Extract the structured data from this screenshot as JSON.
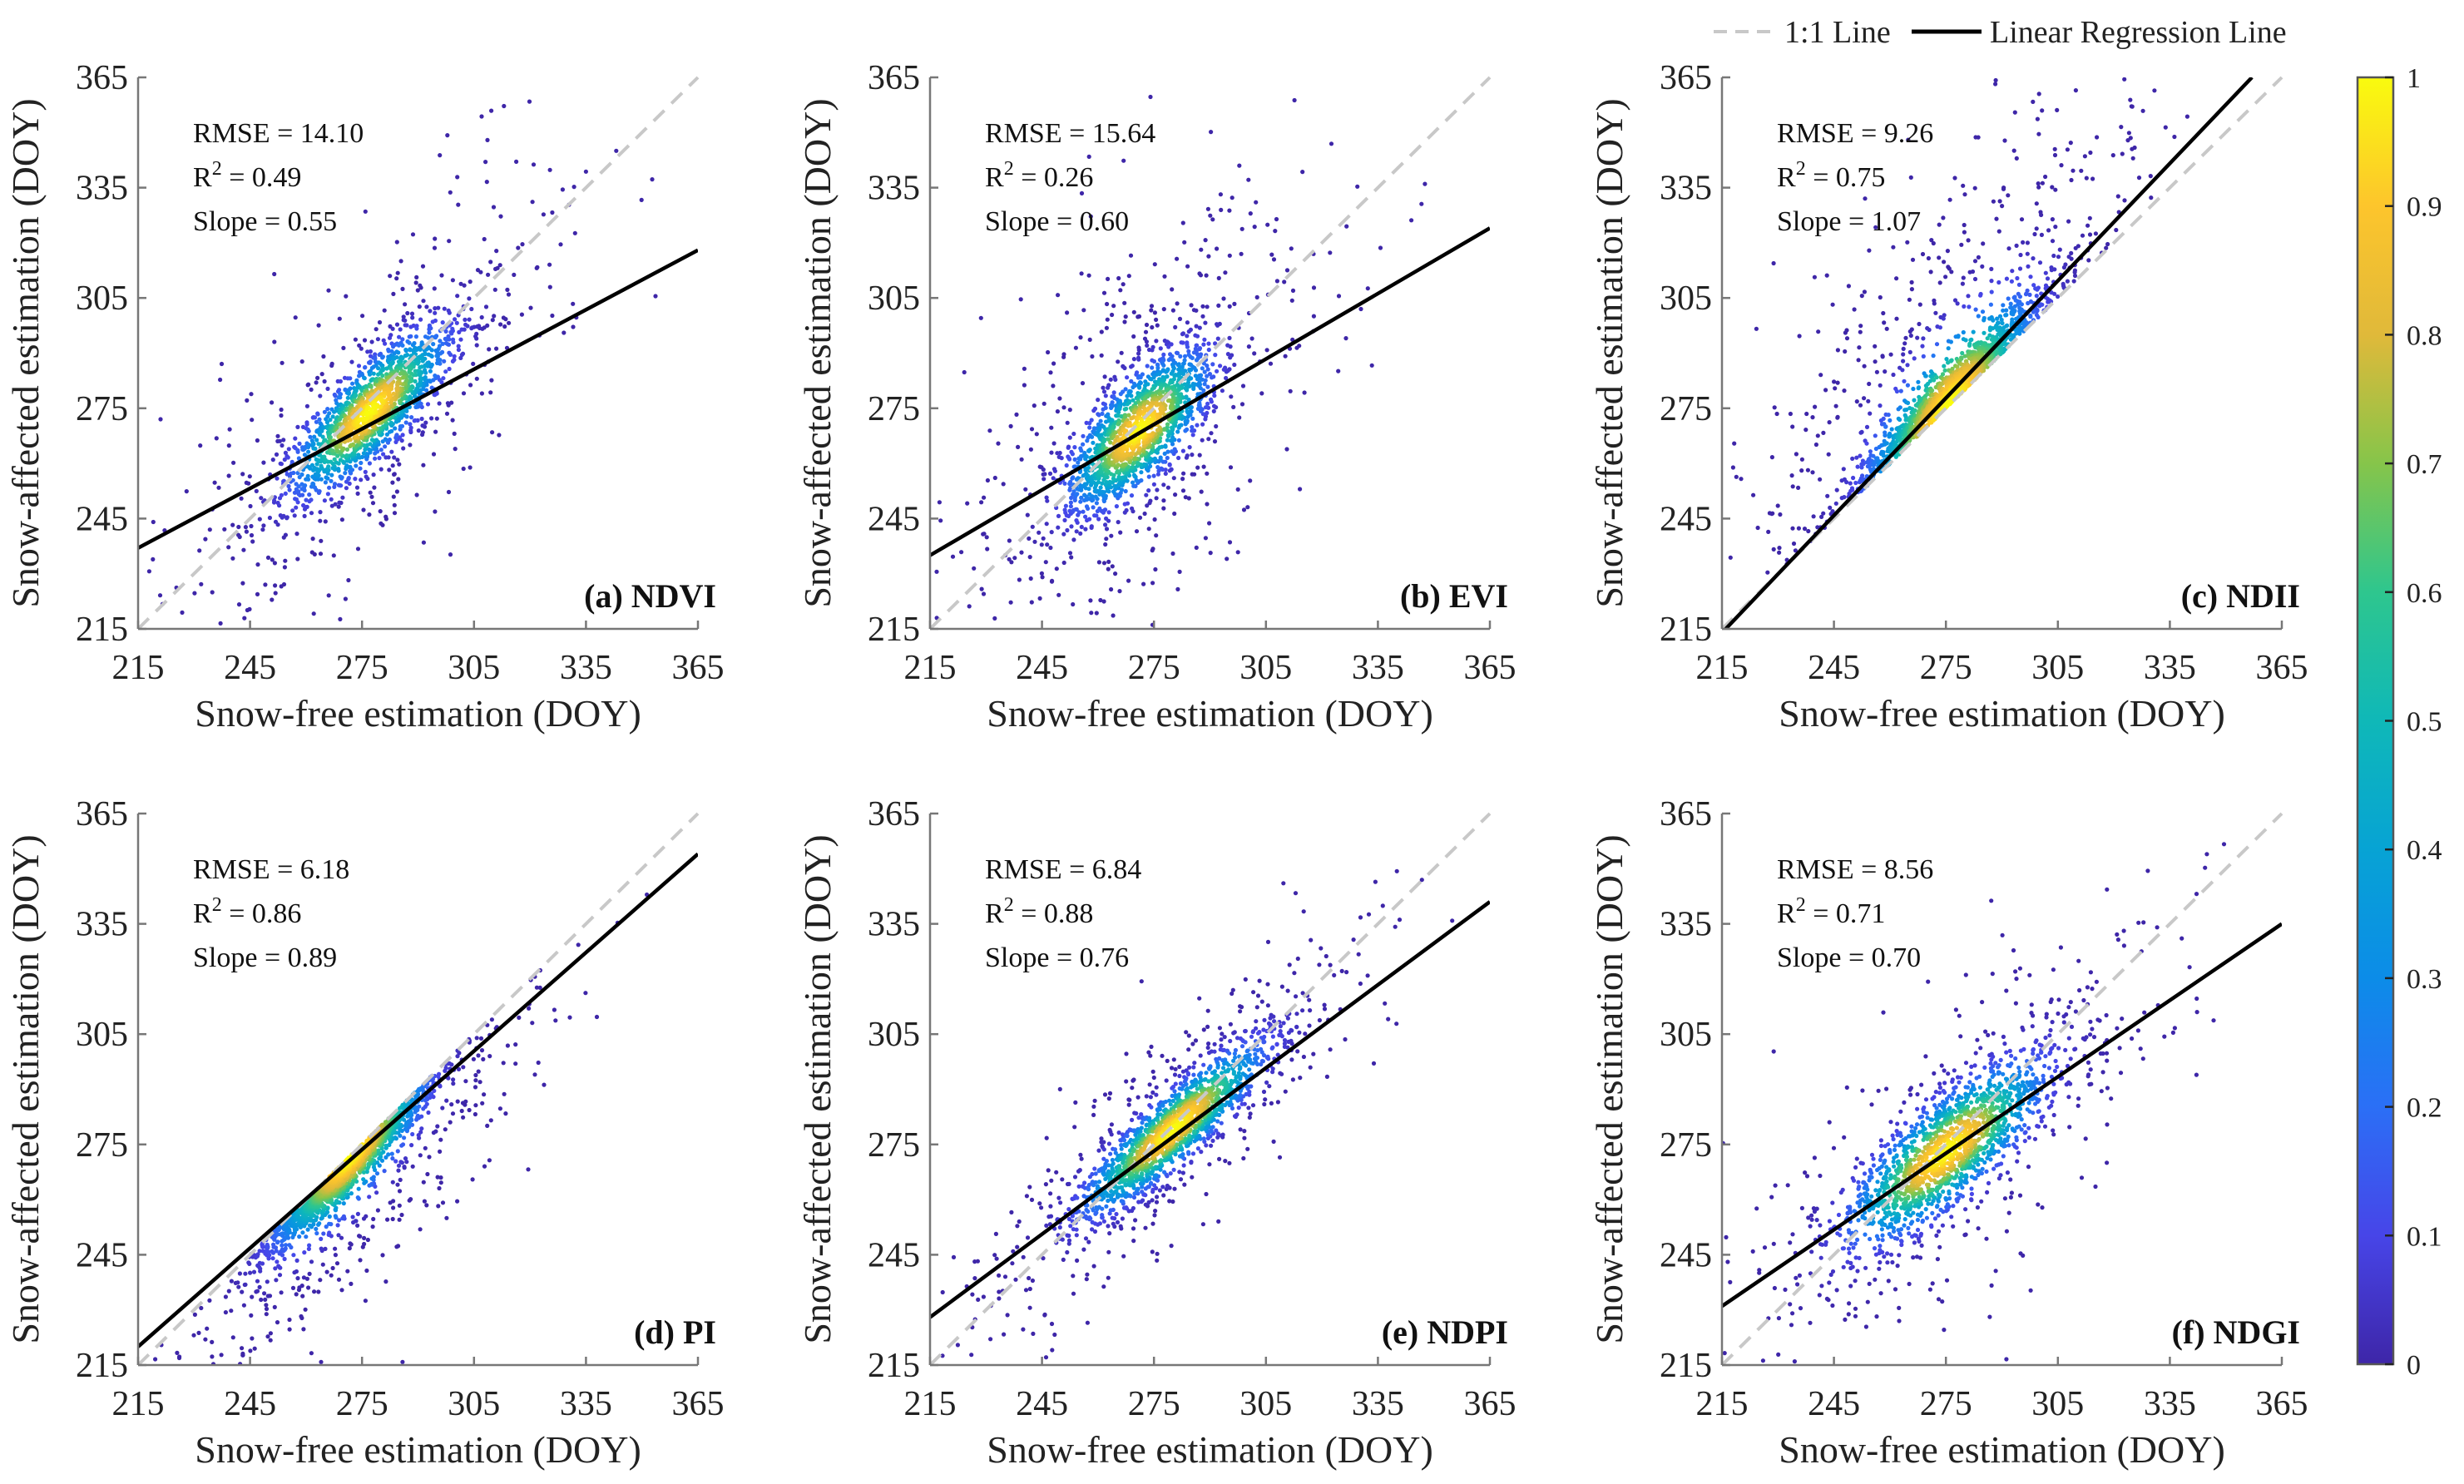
{
  "legend": {
    "one_to_one": "1:1 Line",
    "regression": "Linear Regression Line"
  },
  "colorbar": {
    "ticks": [
      "0",
      "0.1",
      "0.2",
      "0.3",
      "0.4",
      "0.5",
      "0.6",
      "0.7",
      "0.8",
      "0.9",
      "1"
    ],
    "range": [
      0,
      1
    ],
    "colors": [
      "#3e26a8",
      "#4745e8",
      "#2b6ff6",
      "#0c8ce8",
      "#07a3d4",
      "#0fb8b8",
      "#2ec68e",
      "#86c54a",
      "#e0b93a",
      "#fdc52c",
      "#f9fb0e"
    ]
  },
  "chart_data": [
    {
      "type": "scatter",
      "panel": "(a) NDVI",
      "xlabel": "Snow-free estimation (DOY)",
      "ylabel": "Snow-affected estimation (DOY)",
      "xlim": [
        215,
        365
      ],
      "ylim": [
        215,
        365
      ],
      "xticks": [
        "215",
        "245",
        "275",
        "305",
        "335",
        "365"
      ],
      "yticks": [
        "215",
        "245",
        "275",
        "305",
        "335",
        "365"
      ],
      "stats": {
        "rmse": "RMSE = 14.10",
        "r2_prefix": "R",
        "r2_sup": "2",
        "r2_value": " = 0.49",
        "slope": "Slope = 0.55"
      },
      "regression_line": {
        "x": [
          215,
          365
        ],
        "y": [
          237,
          318
        ]
      },
      "cloud": {
        "cx": 277,
        "cy": 274,
        "sx": 11,
        "k": 0.85,
        "sy": 7,
        "skew": "none",
        "tail": 3.2
      }
    },
    {
      "type": "scatter",
      "panel": "(b) EVI",
      "xlabel": "Snow-free estimation (DOY)",
      "ylabel": "Snow-affected estimation (DOY)",
      "xlim": [
        215,
        365
      ],
      "ylim": [
        215,
        365
      ],
      "xticks": [
        "215",
        "245",
        "275",
        "305",
        "335",
        "365"
      ],
      "yticks": [
        "215",
        "245",
        "275",
        "305",
        "335",
        "365"
      ],
      "stats": {
        "rmse": "RMSE = 15.64",
        "r2_prefix": "R",
        "r2_sup": "2",
        "r2_value": " = 0.26",
        "slope": "Slope = 0.60"
      },
      "regression_line": {
        "x": [
          215,
          365
        ],
        "y": [
          235,
          324
        ]
      },
      "cloud": {
        "cx": 271,
        "cy": 269,
        "sx": 10,
        "k": 0.8,
        "sy": 8,
        "skew": "none",
        "tail": 3.4
      }
    },
    {
      "type": "scatter",
      "panel": "(c) NDII",
      "xlabel": "Snow-free estimation (DOY)",
      "ylabel": "Snow-affected estimation (DOY)",
      "xlim": [
        215,
        365
      ],
      "ylim": [
        215,
        365
      ],
      "xticks": [
        "215",
        "245",
        "275",
        "305",
        "335",
        "365"
      ],
      "yticks": [
        "215",
        "245",
        "275",
        "305",
        "335",
        "365"
      ],
      "stats": {
        "rmse": "RMSE = 9.26",
        "r2_prefix": "R",
        "r2_sup": "2",
        "r2_value": " = 0.75",
        "slope": "Slope = 1.07"
      },
      "regression_line": {
        "x": [
          216,
          357
        ],
        "y": [
          215,
          365
        ]
      },
      "cloud": {
        "cx": 276,
        "cy": 277,
        "sx": 12,
        "k": 1.0,
        "sy": 7,
        "skew": "above",
        "tail": 3.0
      }
    },
    {
      "type": "scatter",
      "panel": "(d) PI",
      "xlabel": "Snow-free estimation (DOY)",
      "ylabel": "Snow-affected estimation (DOY)",
      "xlim": [
        215,
        365
      ],
      "ylim": [
        215,
        365
      ],
      "xticks": [
        "215",
        "245",
        "275",
        "305",
        "335",
        "365"
      ],
      "yticks": [
        "215",
        "245",
        "275",
        "305",
        "335",
        "365"
      ],
      "stats": {
        "rmse": "RMSE = 6.18",
        "r2_prefix": "R",
        "r2_sup": "2",
        "r2_value": " = 0.86",
        "slope": "Slope = 0.89"
      },
      "regression_line": {
        "x": [
          215,
          365
        ],
        "y": [
          220,
          354
        ]
      },
      "cloud": {
        "cx": 272,
        "cy": 271,
        "sx": 11,
        "k": 1.0,
        "sy": 5,
        "skew": "below",
        "tail": 2.8
      }
    },
    {
      "type": "scatter",
      "panel": "(e) NDPI",
      "xlabel": "Snow-free estimation (DOY)",
      "ylabel": "Snow-affected estimation (DOY)",
      "xlim": [
        215,
        365
      ],
      "ylim": [
        215,
        365
      ],
      "xticks": [
        "215",
        "245",
        "275",
        "305",
        "335",
        "365"
      ],
      "yticks": [
        "215",
        "245",
        "275",
        "305",
        "335",
        "365"
      ],
      "stats": {
        "rmse": "RMSE = 6.84",
        "r2_prefix": "R",
        "r2_sup": "2",
        "r2_value": " = 0.88",
        "slope": "Slope = 0.76"
      },
      "regression_line": {
        "x": [
          215,
          365
        ],
        "y": [
          228,
          341
        ]
      },
      "cloud": {
        "cx": 280,
        "cy": 279,
        "sx": 13,
        "k": 0.85,
        "sy": 5.5,
        "skew": "none",
        "tail": 2.6
      }
    },
    {
      "type": "scatter",
      "panel": "(f) NDGI",
      "xlabel": "Snow-free estimation (DOY)",
      "ylabel": "Snow-affected estimation (DOY)",
      "xlim": [
        215,
        365
      ],
      "ylim": [
        215,
        365
      ],
      "xticks": [
        "215",
        "245",
        "275",
        "305",
        "335",
        "365"
      ],
      "yticks": [
        "215",
        "245",
        "275",
        "305",
        "335",
        "365"
      ],
      "stats": {
        "rmse": "RMSE = 8.56",
        "r2_prefix": "R",
        "r2_sup": "2",
        "r2_value": " = 0.71",
        "slope": "Slope = 0.70"
      },
      "regression_line": {
        "x": [
          215,
          365
        ],
        "y": [
          231,
          335
        ]
      },
      "cloud": {
        "cx": 275,
        "cy": 273,
        "sx": 14,
        "k": 0.75,
        "sy": 8,
        "skew": "none",
        "tail": 2.6
      }
    }
  ]
}
